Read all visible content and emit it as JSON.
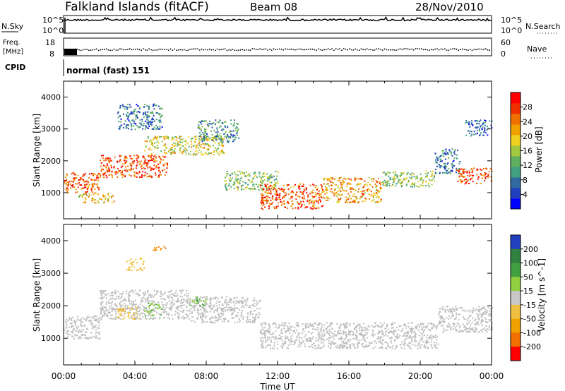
{
  "header": {
    "station": "Falkland Islands (fitACF)",
    "beam": "Beam 08",
    "date": "28/Nov/2010"
  },
  "panels": {
    "noise": {
      "left_label": "N.Sky",
      "right_label": "N.Search",
      "left_ticks": [
        "10^5",
        "10^0"
      ],
      "right_ticks": [
        "10^5",
        "10^0"
      ]
    },
    "freq": {
      "left_label_1": "Freq.",
      "left_label_2": "[MHz]",
      "right_label": "Nave",
      "left_ticks": [
        "18",
        "8"
      ],
      "right_ticks": [
        "60",
        "0"
      ]
    },
    "cpid": {
      "label": "CPID",
      "value": "normal (fast) 151"
    }
  },
  "colors": {
    "sky_noise": "#000000",
    "search_noise": "#000000",
    "ground_scatter": "#bebebe"
  },
  "chart_data": [
    {
      "type": "heatmap",
      "name": "power",
      "ylabel": "Slant Range [km]",
      "xlabel": "Time UT",
      "x_ticks": [
        "00:00",
        "04:00",
        "08:00",
        "12:00",
        "16:00",
        "20:00",
        "00:00"
      ],
      "x_range_hours": [
        0,
        24
      ],
      "y_ticks": [
        1000,
        2000,
        3000,
        4000
      ],
      "ylim": [
        180,
        4500
      ],
      "colorbar": {
        "label": "Power [dB]",
        "ticks": [
          4,
          8,
          12,
          16,
          20,
          24,
          28
        ],
        "range": [
          0,
          32
        ],
        "colors": [
          "#0000ff",
          "#2040c0",
          "#306aa0",
          "#40a080",
          "#60b060",
          "#a0c840",
          "#f0d020",
          "#f0a000",
          "#f07000",
          "#f03000",
          "#ff0000"
        ]
      },
      "regions": [
        {
          "t0": 0.0,
          "t1": 2.0,
          "r0": 1000,
          "r1": 1650,
          "power": 26
        },
        {
          "t0": 0.8,
          "t1": 2.8,
          "r0": 700,
          "r1": 1000,
          "power": 20
        },
        {
          "t0": 2.0,
          "t1": 5.8,
          "r0": 1500,
          "r1": 2200,
          "power": 27
        },
        {
          "t0": 4.5,
          "t1": 9.0,
          "r0": 2200,
          "r1": 2800,
          "power": 18
        },
        {
          "t0": 7.5,
          "t1": 9.8,
          "r0": 2600,
          "r1": 3300,
          "power": 10
        },
        {
          "t0": 3.0,
          "t1": 5.5,
          "r0": 3000,
          "r1": 3800,
          "power": 8
        },
        {
          "t0": 9.0,
          "t1": 12.0,
          "r0": 1100,
          "r1": 1700,
          "power": 14
        },
        {
          "t0": 11.0,
          "t1": 14.5,
          "r0": 500,
          "r1": 1300,
          "power": 26
        },
        {
          "t0": 14.5,
          "t1": 17.8,
          "r0": 700,
          "r1": 1500,
          "power": 22
        },
        {
          "t0": 17.8,
          "t1": 20.8,
          "r0": 1200,
          "r1": 1700,
          "power": 15
        },
        {
          "t0": 20.8,
          "t1": 22.2,
          "r0": 1600,
          "r1": 2400,
          "power": 8
        },
        {
          "t0": 22.0,
          "t1": 24.0,
          "r0": 1300,
          "r1": 1800,
          "power": 27
        },
        {
          "t0": 22.5,
          "t1": 24.0,
          "r0": 2800,
          "r1": 3300,
          "power": 6
        }
      ]
    },
    {
      "type": "heatmap",
      "name": "velocity",
      "ylabel": "Slant Range [km]",
      "xlabel": "Time UT",
      "x_ticks": [
        "00:00",
        "04:00",
        "08:00",
        "12:00",
        "16:00",
        "20:00",
        "00:00"
      ],
      "x_range_hours": [
        0,
        24
      ],
      "y_ticks": [
        1000,
        2000,
        3000,
        4000
      ],
      "ylim": [
        180,
        4500
      ],
      "colorbar": {
        "label": "Velocity [m s^-1]",
        "ticks": [
          200,
          100,
          50,
          15,
          -15,
          -50,
          -100,
          -200
        ],
        "colors": [
          "#2040c0",
          "#308040",
          "#40a040",
          "#90d040",
          "#c8c8c8",
          "#f0c040",
          "#f0a000",
          "#f07000",
          "#ff0000"
        ]
      },
      "regions": [
        {
          "t0": 0.0,
          "t1": 2.0,
          "r0": 1000,
          "r1": 1700,
          "velocity": 0,
          "ground_scatter": true
        },
        {
          "t0": 2.0,
          "t1": 7.0,
          "r0": 1600,
          "r1": 2500,
          "velocity": 0,
          "ground_scatter": true
        },
        {
          "t0": 7.0,
          "t1": 11.0,
          "r0": 1500,
          "r1": 2300,
          "velocity": 0,
          "ground_scatter": true
        },
        {
          "t0": 11.0,
          "t1": 21.0,
          "r0": 700,
          "r1": 1500,
          "velocity": 0,
          "ground_scatter": true
        },
        {
          "t0": 21.0,
          "t1": 24.0,
          "r0": 1200,
          "r1": 2000,
          "velocity": 0,
          "ground_scatter": true
        },
        {
          "t0": 3.0,
          "t1": 4.2,
          "r0": 1600,
          "r1": 2000,
          "velocity": -60
        },
        {
          "t0": 4.5,
          "t1": 5.5,
          "r0": 1700,
          "r1": 2100,
          "velocity": 30
        },
        {
          "t0": 5.0,
          "t1": 5.7,
          "r0": 3700,
          "r1": 3900,
          "velocity": -150
        },
        {
          "t0": 3.5,
          "t1": 4.5,
          "r0": 3100,
          "r1": 3500,
          "velocity": -50
        },
        {
          "t0": 7.0,
          "t1": 8.0,
          "r0": 2000,
          "r1": 2300,
          "velocity": 30
        }
      ]
    }
  ]
}
